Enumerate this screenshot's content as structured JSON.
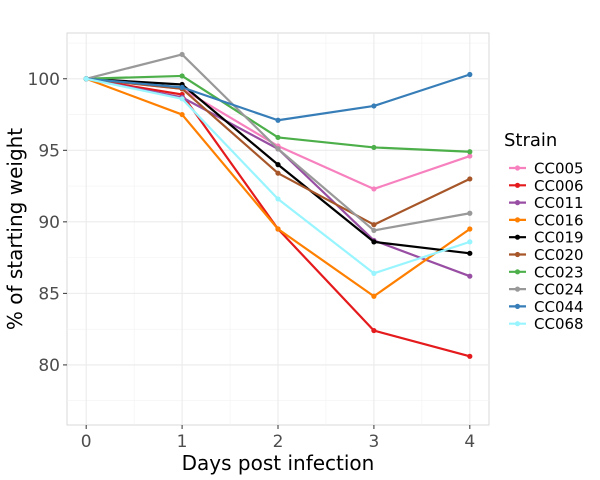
{
  "chart_data": {
    "type": "line",
    "xlabel": "Days post infection",
    "ylabel": "% of starting weight",
    "x": [
      0,
      1,
      2,
      3,
      4
    ],
    "xlim": [
      -0.2,
      4.2
    ],
    "ylim": [
      75.8,
      103.2
    ],
    "yticks": [
      80,
      85,
      90,
      95,
      100
    ],
    "xticks": [
      0,
      1,
      2,
      3,
      4
    ],
    "grid": true,
    "legend": {
      "title": "Strain",
      "position": "right"
    },
    "series": [
      {
        "name": "CC005",
        "color": "#F781BF",
        "values": [
          100,
          99.3,
          95.3,
          92.3,
          94.6
        ]
      },
      {
        "name": "CC006",
        "color": "#E41A1C",
        "values": [
          100,
          98.9,
          89.5,
          82.4,
          80.6
        ]
      },
      {
        "name": "CC011",
        "color": "#984EA3",
        "values": [
          100,
          98.7,
          95.1,
          88.7,
          86.2
        ]
      },
      {
        "name": "CC016",
        "color": "#FF7F00",
        "values": [
          100,
          97.5,
          89.5,
          84.8,
          89.5
        ]
      },
      {
        "name": "CC019",
        "color": "#000000",
        "values": [
          100,
          99.6,
          94.0,
          88.6,
          87.8
        ]
      },
      {
        "name": "CC020",
        "color": "#A65628",
        "values": [
          100,
          99.3,
          93.4,
          89.8,
          93.0
        ]
      },
      {
        "name": "CC023",
        "color": "#4DAF4A",
        "values": [
          100,
          100.2,
          95.9,
          95.2,
          94.9
        ]
      },
      {
        "name": "CC024",
        "color": "#999999",
        "values": [
          100,
          101.7,
          95.1,
          89.4,
          90.6
        ]
      },
      {
        "name": "CC044",
        "color": "#377EB8",
        "values": [
          100,
          99.4,
          97.1,
          98.1,
          100.3
        ]
      },
      {
        "name": "CC068",
        "color": "#98F5FF",
        "values": [
          100,
          98.6,
          91.6,
          86.4,
          88.6
        ]
      }
    ]
  }
}
